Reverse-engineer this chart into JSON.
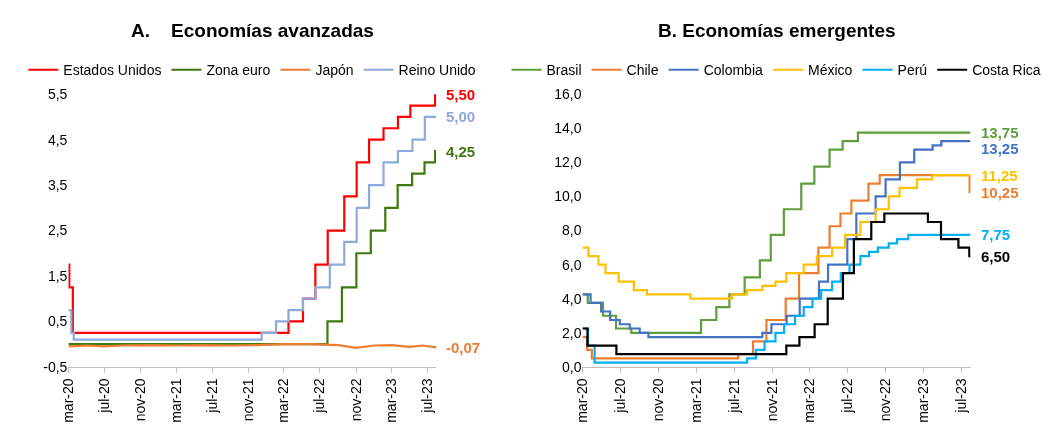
{
  "chart_data": [
    {
      "type": "step",
      "title": "A.    Economías avanzadas",
      "legend": "top",
      "xlim": [
        "2020-03-01",
        "2023-07-31"
      ],
      "xticks": [
        {
          "value": "2020-03-01",
          "label": "mar-20"
        },
        {
          "value": "2020-07-01",
          "label": "jul-20"
        },
        {
          "value": "2020-11-01",
          "label": "nov-20"
        },
        {
          "value": "2021-03-01",
          "label": "mar-21"
        },
        {
          "value": "2021-07-01",
          "label": "jul-21"
        },
        {
          "value": "2021-11-01",
          "label": "nov-21"
        },
        {
          "value": "2022-03-01",
          "label": "mar-22"
        },
        {
          "value": "2022-07-01",
          "label": "jul-22"
        },
        {
          "value": "2022-11-01",
          "label": "nov-22"
        },
        {
          "value": "2023-03-01",
          "label": "mar-23"
        },
        {
          "value": "2023-07-01",
          "label": "jul-23"
        }
      ],
      "ylim": [
        -0.5,
        5.5
      ],
      "yticks": [
        {
          "value": -0.5,
          "label": "-0,5"
        },
        {
          "value": 0.5,
          "label": "0,5"
        },
        {
          "value": 1.5,
          "label": "1,5"
        },
        {
          "value": 2.5,
          "label": "2,5"
        },
        {
          "value": 3.5,
          "label": "3,5"
        },
        {
          "value": 4.5,
          "label": "4,5"
        },
        {
          "value": 5.5,
          "label": "5,5"
        }
      ],
      "series": [
        {
          "name": "Estados Unidos",
          "color": "#ff0000",
          "x": [
            "2020-03-01",
            "2020-03-04",
            "2020-03-16",
            "2022-03-17",
            "2022-05-05",
            "2022-06-16",
            "2022-07-28",
            "2022-09-22",
            "2022-11-03",
            "2022-12-15",
            "2023-02-02",
            "2023-03-23",
            "2023-05-04",
            "2023-07-27",
            "2023-07-31"
          ],
          "values": [
            1.75,
            1.25,
            0.25,
            0.5,
            1.0,
            1.75,
            2.5,
            3.25,
            4.0,
            4.5,
            4.75,
            5.0,
            5.25,
            5.5,
            5.5
          ]
        },
        {
          "name": "Zona euro",
          "color": "#3d7a0f",
          "x": [
            "2020-03-01",
            "2022-07-27",
            "2022-09-14",
            "2022-11-02",
            "2022-12-21",
            "2023-02-08",
            "2023-03-22",
            "2023-05-10",
            "2023-06-21",
            "2023-07-27",
            "2023-07-31"
          ],
          "values": [
            0,
            0.5,
            1.25,
            2.0,
            2.5,
            3.0,
            3.5,
            3.75,
            4.0,
            4.25,
            4.25
          ]
        },
        {
          "name": "Japón",
          "type": "line",
          "color": "#ed7d31",
          "x": [
            "2020-03-01",
            "2020-05-01",
            "2020-07-01",
            "2020-09-01",
            "2020-12-01",
            "2021-03-01",
            "2021-06-01",
            "2021-09-01",
            "2021-12-01",
            "2022-03-01",
            "2022-06-01",
            "2022-09-01",
            "2022-11-01",
            "2023-01-01",
            "2023-03-01",
            "2023-05-01",
            "2023-06-15",
            "2023-07-31"
          ],
          "values": [
            -0.05,
            -0.03,
            -0.05,
            -0.03,
            -0.02,
            -0.03,
            -0.02,
            -0.03,
            -0.02,
            0,
            0,
            -0.02,
            -0.08,
            -0.03,
            -0.02,
            -0.06,
            -0.03,
            -0.07
          ]
        },
        {
          "name": "Reino Unido",
          "color": "#8eaadb",
          "x": [
            "2020-03-01",
            "2020-03-11",
            "2020-03-19",
            "2021-12-16",
            "2022-02-03",
            "2022-03-17",
            "2022-05-05",
            "2022-06-16",
            "2022-08-04",
            "2022-09-22",
            "2022-11-03",
            "2022-12-15",
            "2023-02-02",
            "2023-03-23",
            "2023-05-11",
            "2023-06-22",
            "2023-07-31"
          ],
          "values": [
            0.75,
            0.25,
            0.1,
            0.25,
            0.5,
            0.75,
            1.0,
            1.25,
            1.75,
            2.25,
            3.0,
            3.5,
            4.0,
            4.25,
            4.5,
            5.0,
            5.0
          ]
        }
      ],
      "annotations": [
        {
          "text": "5,50",
          "x": "2023-07-31",
          "y": 5.5
        },
        {
          "text": "4,25",
          "x": "2023-07-31",
          "y": 4.25
        },
        {
          "text": "-0,07",
          "x": "2023-07-31",
          "y": -0.07
        },
        {
          "text": "5,00",
          "x": "2023-07-31",
          "y": 5.0
        }
      ]
    },
    {
      "type": "step",
      "title": "B. Economías emergentes",
      "legend": "top",
      "xlim": [
        "2020-03-01",
        "2023-07-31"
      ],
      "xticks": [
        {
          "value": "2020-03-01",
          "label": "mar-20"
        },
        {
          "value": "2020-07-01",
          "label": "jul-20"
        },
        {
          "value": "2020-11-01",
          "label": "nov-20"
        },
        {
          "value": "2021-03-01",
          "label": "mar-21"
        },
        {
          "value": "2021-07-01",
          "label": "jul-21"
        },
        {
          "value": "2021-11-01",
          "label": "nov-21"
        },
        {
          "value": "2022-03-01",
          "label": "mar-22"
        },
        {
          "value": "2022-07-01",
          "label": "jul-22"
        },
        {
          "value": "2022-11-01",
          "label": "nov-22"
        },
        {
          "value": "2023-03-01",
          "label": "mar-23"
        },
        {
          "value": "2023-07-01",
          "label": "jul-23"
        }
      ],
      "ylim": [
        0,
        16
      ],
      "yticks": [
        {
          "value": 0,
          "label": "0,0"
        },
        {
          "value": 2,
          "label": "2,0"
        },
        {
          "value": 4,
          "label": "4,0"
        },
        {
          "value": 6,
          "label": "6,0"
        },
        {
          "value": 8,
          "label": "8,0"
        },
        {
          "value": 10,
          "label": "10,0"
        },
        {
          "value": 12,
          "label": "12,0"
        },
        {
          "value": 14,
          "label": "14,0"
        },
        {
          "value": 16,
          "label": "16,0"
        }
      ],
      "series": [
        {
          "name": "Brasil",
          "color": "#5e9e3c",
          "x": [
            "2020-03-01",
            "2020-03-18",
            "2020-05-06",
            "2020-06-17",
            "2020-08-05",
            "2021-03-17",
            "2021-05-05",
            "2021-06-16",
            "2021-08-04",
            "2021-09-22",
            "2021-10-27",
            "2021-12-08",
            "2022-02-02",
            "2022-03-16",
            "2022-05-04",
            "2022-06-15",
            "2022-08-03",
            "2023-07-31"
          ],
          "values": [
            4.25,
            3.75,
            3.0,
            2.25,
            2.0,
            2.75,
            3.5,
            4.25,
            5.25,
            6.25,
            7.75,
            9.25,
            10.75,
            11.75,
            12.75,
            13.25,
            13.75,
            13.75
          ]
        },
        {
          "name": "Chile",
          "color": "#ed7d31",
          "x": [
            "2020-03-01",
            "2020-03-16",
            "2020-03-31",
            "2021-07-14",
            "2021-08-31",
            "2021-10-13",
            "2021-12-14",
            "2022-01-26",
            "2022-03-29",
            "2022-05-04",
            "2022-06-08",
            "2022-07-13",
            "2022-09-06",
            "2022-10-12",
            "2023-07-28",
            "2023-07-31"
          ],
          "values": [
            1.75,
            1.0,
            0.5,
            0.75,
            1.5,
            2.75,
            4.0,
            5.5,
            7.0,
            8.25,
            9.0,
            9.75,
            10.75,
            11.25,
            10.25,
            10.25
          ]
        },
        {
          "name": "Colombia",
          "color": "#4472c4",
          "x": [
            "2020-03-01",
            "2020-03-27",
            "2020-04-30",
            "2020-05-29",
            "2020-06-29",
            "2020-07-31",
            "2020-09-01",
            "2020-09-29",
            "2021-09-30",
            "2021-10-29",
            "2021-12-17",
            "2022-01-28",
            "2022-03-31",
            "2022-04-29",
            "2022-06-30",
            "2022-07-29",
            "2022-09-29",
            "2022-10-31",
            "2022-12-16",
            "2023-01-31",
            "2023-03-31",
            "2023-04-28",
            "2023-07-31"
          ],
          "values": [
            4.25,
            3.75,
            3.25,
            2.75,
            2.5,
            2.25,
            2.0,
            1.75,
            2.0,
            2.5,
            3.0,
            4.0,
            5.0,
            6.0,
            7.5,
            9.0,
            10.0,
            11.0,
            12.0,
            12.75,
            13.0,
            13.25,
            13.25
          ]
        },
        {
          "name": "México",
          "color": "#ffc000",
          "x": [
            "2020-03-01",
            "2020-03-20",
            "2020-04-21",
            "2020-05-14",
            "2020-06-25",
            "2020-08-13",
            "2020-09-24",
            "2021-02-11",
            "2021-06-24",
            "2021-08-12",
            "2021-09-30",
            "2021-11-11",
            "2021-12-16",
            "2022-02-10",
            "2022-03-24",
            "2022-05-12",
            "2022-06-23",
            "2022-08-11",
            "2022-09-29",
            "2022-11-10",
            "2022-12-15",
            "2023-02-09",
            "2023-03-30",
            "2023-07-31"
          ],
          "values": [
            7.0,
            6.5,
            6.0,
            5.5,
            5.0,
            4.5,
            4.25,
            4.0,
            4.25,
            4.5,
            4.75,
            5.0,
            5.5,
            6.0,
            6.5,
            7.0,
            7.75,
            8.5,
            9.25,
            10.0,
            10.5,
            11.0,
            11.25,
            11.25
          ]
        },
        {
          "name": "Perú",
          "color": "#00b0f0",
          "x": [
            "2020-03-01",
            "2020-03-19",
            "2020-04-09",
            "2021-08-12",
            "2021-09-09",
            "2021-10-07",
            "2021-11-11",
            "2021-12-09",
            "2022-01-13",
            "2022-02-10",
            "2022-03-10",
            "2022-04-07",
            "2022-05-12",
            "2022-06-09",
            "2022-07-07",
            "2022-08-11",
            "2022-09-08",
            "2022-10-06",
            "2022-11-10",
            "2022-12-07",
            "2023-01-12",
            "2023-07-31"
          ],
          "values": [
            2.25,
            1.25,
            0.25,
            0.5,
            1.0,
            1.5,
            2.0,
            2.5,
            3.0,
            3.5,
            4.0,
            4.5,
            5.0,
            5.5,
            6.0,
            6.5,
            6.75,
            7.0,
            7.25,
            7.5,
            7.75,
            7.75
          ]
        },
        {
          "name": "Costa Rica",
          "color": "#000000",
          "x": [
            "2020-03-01",
            "2020-03-17",
            "2020-06-18",
            "2021-12-16",
            "2022-01-27",
            "2022-03-17",
            "2022-04-28",
            "2022-06-16",
            "2022-07-21",
            "2022-09-15",
            "2022-10-27",
            "2023-03-16",
            "2023-04-27",
            "2023-06-22",
            "2023-07-27",
            "2023-07-31"
          ],
          "values": [
            2.25,
            1.25,
            0.75,
            1.25,
            1.75,
            2.5,
            4.0,
            5.5,
            7.5,
            8.5,
            9.0,
            8.5,
            7.5,
            7.0,
            6.5,
            6.5
          ]
        }
      ],
      "annotations": [
        {
          "text": "13,75",
          "x": "2023-07-31",
          "y": 13.75
        },
        {
          "text": "10,25",
          "x": "2023-07-31",
          "y": 10.25
        },
        {
          "text": "13,25",
          "x": "2023-07-31",
          "y": 13.25
        },
        {
          "text": "11,25",
          "x": "2023-07-31",
          "y": 11.25
        },
        {
          "text": "7,75",
          "x": "2023-07-31",
          "y": 7.75
        },
        {
          "text": "6,50",
          "x": "2023-07-31",
          "y": 6.5
        }
      ]
    }
  ]
}
